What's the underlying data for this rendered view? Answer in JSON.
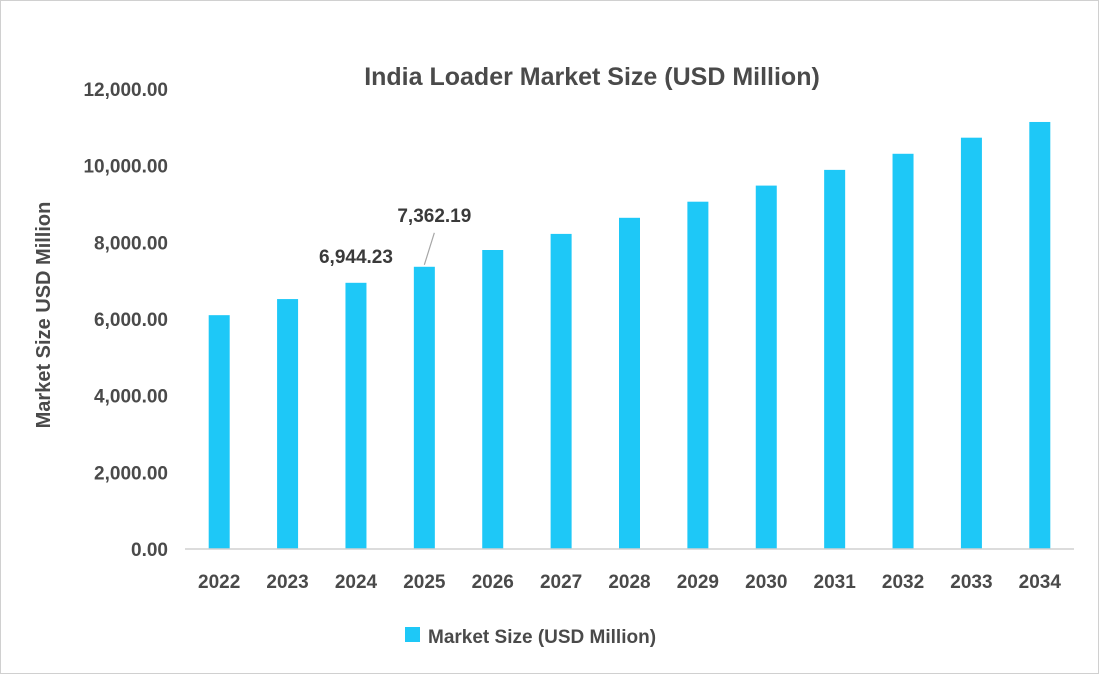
{
  "chart_data": {
    "type": "bar",
    "title": "India Loader Market Size (USD Million)",
    "xlabel": "",
    "ylabel": "Market Size USD Million",
    "categories": [
      "2022",
      "2023",
      "2024",
      "2025",
      "2026",
      "2027",
      "2028",
      "2029",
      "2030",
      "2031",
      "2032",
      "2033",
      "2034"
    ],
    "series": [
      {
        "name": "Market Size (USD Million)",
        "color": "#1ec8f7",
        "values": [
          6100,
          6520,
          6944.23,
          7362.19,
          7800,
          8220,
          8640,
          9060,
          9480,
          9890,
          10310,
          10730,
          11140
        ]
      }
    ],
    "ylim": [
      0,
      12000
    ],
    "yticks": [
      {
        "value": 0,
        "label": "0.00"
      },
      {
        "value": 2000,
        "label": "2,000.00"
      },
      {
        "value": 4000,
        "label": "4,000.00"
      },
      {
        "value": 6000,
        "label": "6,000.00"
      },
      {
        "value": 8000,
        "label": "8,000.00"
      },
      {
        "value": 10000,
        "label": "10,000.00"
      },
      {
        "value": 12000,
        "label": "12,000.00"
      }
    ],
    "data_labels": [
      {
        "index": 2,
        "text": "6,944.23"
      },
      {
        "index": 3,
        "text": "7,362.19"
      }
    ],
    "grid": false,
    "legend": "bottom-center"
  }
}
